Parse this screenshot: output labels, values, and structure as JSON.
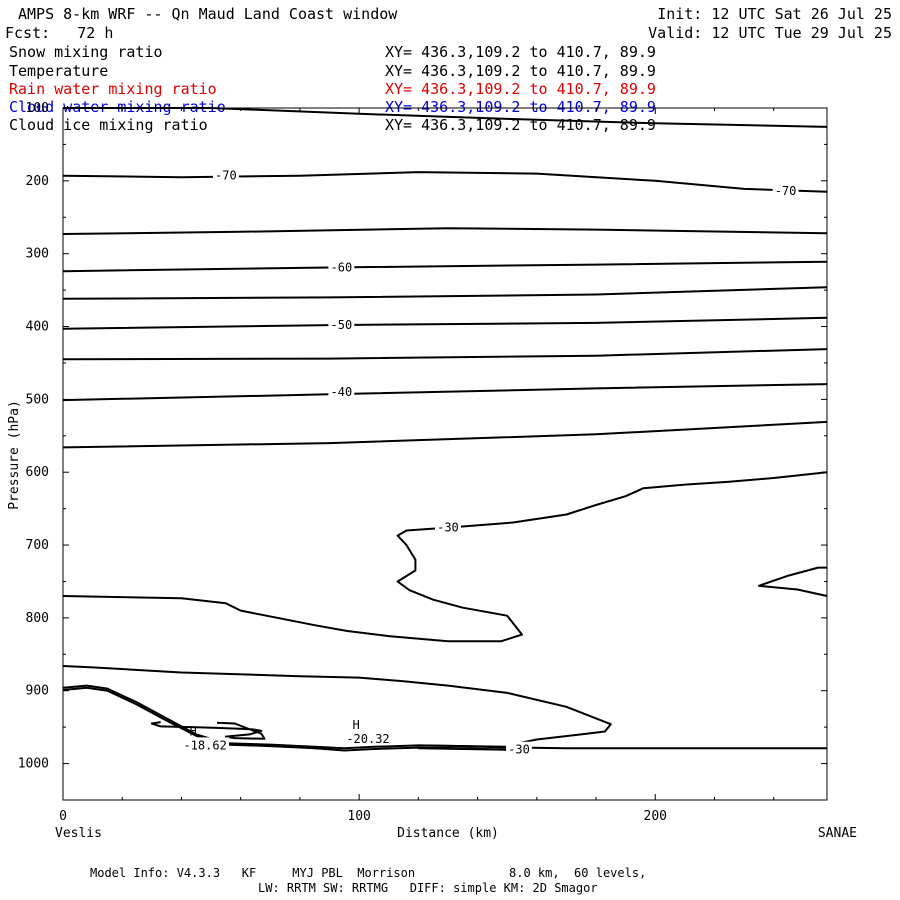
{
  "header": {
    "title": "AMPS 8-km WRF -- Qn Maud Land Coast window",
    "init": "Init: 12 UTC Sat 26 Jul 25",
    "fcst": "Fcst:   72 h",
    "valid": "Valid: 12 UTC Tue 29 Jul 25"
  },
  "fields": [
    {
      "name": "Snow mixing ratio",
      "xy": "XY= 436.3,109.2 to 410.7, 89.9",
      "color": "#000000"
    },
    {
      "name": "Temperature",
      "xy": "XY= 436.3,109.2 to 410.7, 89.9",
      "color": "#000000"
    },
    {
      "name": "Rain water mixing ratio",
      "xy": "XY= 436.3,109.2 to 410.7, 89.9",
      "color": "#e00000"
    },
    {
      "name": "Cloud water mixing ratio",
      "xy": "XY= 436.3,109.2 to 410.7, 89.9",
      "color": "#0000e0"
    },
    {
      "name": "Cloud ice mixing ratio",
      "xy": "XY= 436.3,109.2 to 410.7, 89.9",
      "color": "#000000"
    }
  ],
  "chart_data": {
    "type": "line",
    "xlabel": "Distance (km)",
    "ylabel": "Pressure (hPa)",
    "xlim": [
      0,
      258
    ],
    "ylim": [
      1050,
      100
    ],
    "x_ticks": [
      0,
      100,
      200
    ],
    "y_ticks": [
      100,
      200,
      300,
      400,
      500,
      600,
      700,
      800,
      900,
      1000
    ],
    "endpoint_left": "Veslis",
    "endpoint_right": "SANAE",
    "contour_labels": [
      {
        "text": "-70",
        "x": 55,
        "p": 193
      },
      {
        "text": "-70",
        "x": 244,
        "p": 214
      },
      {
        "text": "-60",
        "x": 94,
        "p": 319
      },
      {
        "text": "-50",
        "x": 94,
        "p": 398
      },
      {
        "text": "-40",
        "x": 94,
        "p": 490
      },
      {
        "text": "-30",
        "x": 130,
        "p": 676
      },
      {
        "text": "-30",
        "x": 154,
        "p": 981
      },
      {
        "text": "H",
        "x": 44,
        "p": 956
      },
      {
        "text": "-18.62",
        "x": 48,
        "p": 975
      },
      {
        "text": "H",
        "x": 99,
        "p": 947
      },
      {
        "text": "-20.32",
        "x": 103,
        "p": 966
      }
    ],
    "contours": [
      [
        [
          0,
          100
        ],
        [
          50,
          100
        ],
        [
          100,
          108
        ],
        [
          150,
          115
        ],
        [
          200,
          121
        ],
        [
          258,
          126
        ]
      ],
      [
        [
          0,
          193
        ],
        [
          40,
          195
        ],
        [
          80,
          193
        ],
        [
          120,
          188
        ],
        [
          160,
          190
        ],
        [
          200,
          200
        ],
        [
          230,
          211
        ],
        [
          258,
          215
        ]
      ],
      [
        [
          0,
          273
        ],
        [
          60,
          270
        ],
        [
          130,
          265
        ],
        [
          180,
          267
        ],
        [
          258,
          272
        ]
      ],
      [
        [
          0,
          324
        ],
        [
          90,
          319
        ],
        [
          180,
          315
        ],
        [
          258,
          311
        ]
      ],
      [
        [
          0,
          362
        ],
        [
          90,
          360
        ],
        [
          180,
          356
        ],
        [
          258,
          346
        ]
      ],
      [
        [
          0,
          403
        ],
        [
          90,
          398
        ],
        [
          180,
          395
        ],
        [
          258,
          388
        ]
      ],
      [
        [
          0,
          445
        ],
        [
          90,
          444
        ],
        [
          180,
          440
        ],
        [
          258,
          431
        ]
      ],
      [
        [
          0,
          501
        ],
        [
          90,
          493
        ],
        [
          180,
          485
        ],
        [
          258,
          479
        ]
      ],
      [
        [
          0,
          566
        ],
        [
          90,
          560
        ],
        [
          180,
          548
        ],
        [
          258,
          531
        ]
      ],
      [
        [
          258,
          600
        ],
        [
          240,
          608
        ],
        [
          225,
          613
        ],
        [
          210,
          617
        ],
        [
          196,
          622
        ],
        [
          190,
          633
        ],
        [
          180,
          645
        ],
        [
          170,
          658
        ],
        [
          152,
          669
        ],
        [
          130,
          676
        ],
        [
          116,
          680
        ],
        [
          113,
          687
        ],
        [
          116,
          700
        ],
        [
          119,
          720
        ],
        [
          119,
          735
        ],
        [
          113,
          750
        ],
        [
          117,
          762
        ],
        [
          125,
          775
        ],
        [
          135,
          786
        ],
        [
          150,
          797
        ],
        [
          155,
          823
        ],
        [
          148,
          832
        ],
        [
          130,
          832
        ],
        [
          110,
          825
        ],
        [
          96,
          818
        ],
        [
          85,
          810
        ],
        [
          60,
          790
        ],
        [
          55,
          780
        ],
        [
          40,
          773
        ],
        [
          0,
          770
        ]
      ],
      [
        [
          258,
          731
        ],
        [
          255,
          731
        ],
        [
          245,
          742
        ],
        [
          235,
          756
        ],
        [
          240,
          758
        ],
        [
          248,
          761
        ],
        [
          258,
          770
        ]
      ],
      [
        [
          0,
          866
        ],
        [
          10,
          868
        ],
        [
          40,
          875
        ],
        [
          80,
          880
        ],
        [
          100,
          882
        ],
        [
          115,
          887
        ],
        [
          130,
          893
        ],
        [
          150,
          903
        ],
        [
          170,
          922
        ],
        [
          185,
          946
        ],
        [
          183,
          956
        ],
        [
          175,
          960
        ],
        [
          160,
          967
        ],
        [
          150,
          975
        ],
        [
          155,
          978
        ],
        [
          170,
          979
        ],
        [
          258,
          979
        ]
      ],
      [
        [
          0,
          896
        ],
        [
          8,
          893
        ],
        [
          15,
          897
        ],
        [
          25,
          916
        ],
        [
          35,
          938
        ],
        [
          45,
          960
        ],
        [
          55,
          972
        ],
        [
          70,
          974
        ],
        [
          85,
          977
        ],
        [
          95,
          979
        ],
        [
          105,
          977
        ],
        [
          120,
          975
        ],
        [
          135,
          976
        ],
        [
          150,
          978
        ]
      ],
      [
        [
          0,
          899
        ],
        [
          8,
          896
        ],
        [
          15,
          900
        ],
        [
          25,
          919
        ],
        [
          35,
          941
        ],
        [
          45,
          962
        ],
        [
          55,
          974
        ],
        [
          70,
          976
        ],
        [
          85,
          979
        ],
        [
          95,
          982
        ],
        [
          105,
          980
        ],
        [
          120,
          978
        ],
        [
          135,
          979
        ],
        [
          150,
          981
        ]
      ],
      [
        [
          33,
          943
        ],
        [
          30,
          945
        ],
        [
          33,
          949
        ],
        [
          45,
          950
        ],
        [
          52,
          951
        ],
        [
          64,
          953
        ],
        [
          67,
          955
        ],
        [
          63,
          960
        ],
        [
          55,
          963
        ],
        [
          58,
          965
        ],
        [
          68,
          966
        ],
        [
          67,
          959
        ],
        [
          63,
          953
        ],
        [
          58,
          945
        ],
        [
          52,
          944
        ]
      ],
      [
        [
          120,
          975
        ],
        [
          150,
          977
        ],
        [
          150,
          981
        ],
        [
          120,
          979
        ]
      ]
    ]
  },
  "footer": {
    "line1": "Model Info: V4.3.3   KF     MYJ PBL  Morrison             8.0 km,  60 levels,",
    "line2": "LW: RRTM SW: RRTMG   DIFF: simple KM: 2D Smagor"
  }
}
